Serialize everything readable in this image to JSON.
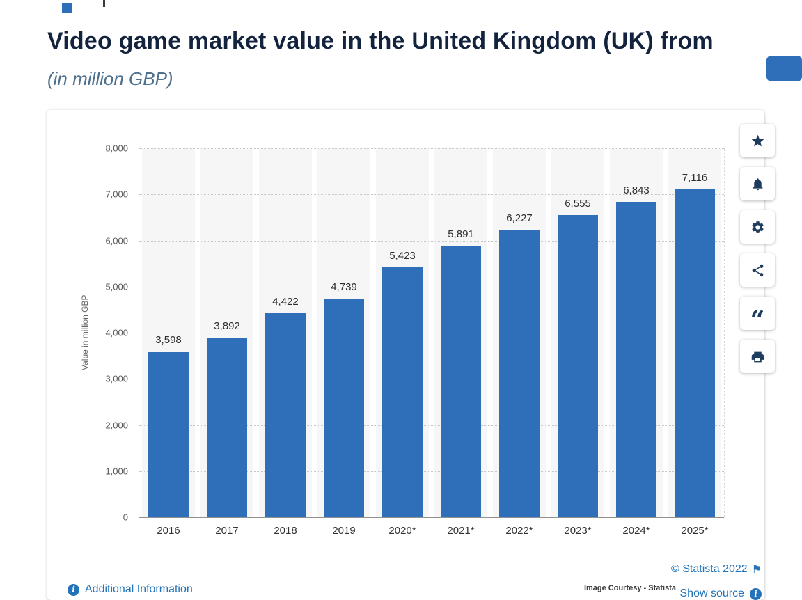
{
  "page": {
    "title": "Video game market value in the United Kingdom (UK) from",
    "subtitle": "(in million GBP)"
  },
  "chart_data": {
    "type": "bar",
    "title": "Video game market value in the United Kingdom (UK) from",
    "categories": [
      "2016",
      "2017",
      "2018",
      "2019",
      "2020*",
      "2021*",
      "2022*",
      "2023*",
      "2024*",
      "2025*"
    ],
    "values": [
      3598,
      3892,
      4422,
      4739,
      5423,
      5891,
      6227,
      6555,
      6843,
      7116
    ],
    "value_labels": [
      "3,598",
      "3,892",
      "4,422",
      "4,739",
      "5,423",
      "5,891",
      "6,227",
      "6,555",
      "6,843",
      "7,116"
    ],
    "xlabel": "",
    "ylabel": "Value in million GBP",
    "ylim": [
      0,
      8000
    ],
    "yticks": [
      "8,000",
      "7,000",
      "6,000",
      "5,000",
      "4,000",
      "3,000",
      "2,000",
      "1,000",
      "0"
    ],
    "grid": "dotted-horizontal",
    "legend": "none",
    "bar_color": "#2f6eb8"
  },
  "icons": {
    "toolbar": [
      "star-icon",
      "bell-icon",
      "gear-icon",
      "share-icon",
      "quote-icon",
      "print-icon"
    ],
    "footer": [
      "info-icon",
      "flag-icon"
    ]
  },
  "footer": {
    "additional_information": "Additional Information",
    "copyright": "© Statista 2022",
    "image_courtesy": "Image Courtesy - Statista",
    "show_source": "Show source"
  },
  "colors": {
    "accent_blue": "#2f6eb8",
    "link_blue": "#2273b9",
    "title_navy": "#13233d"
  }
}
